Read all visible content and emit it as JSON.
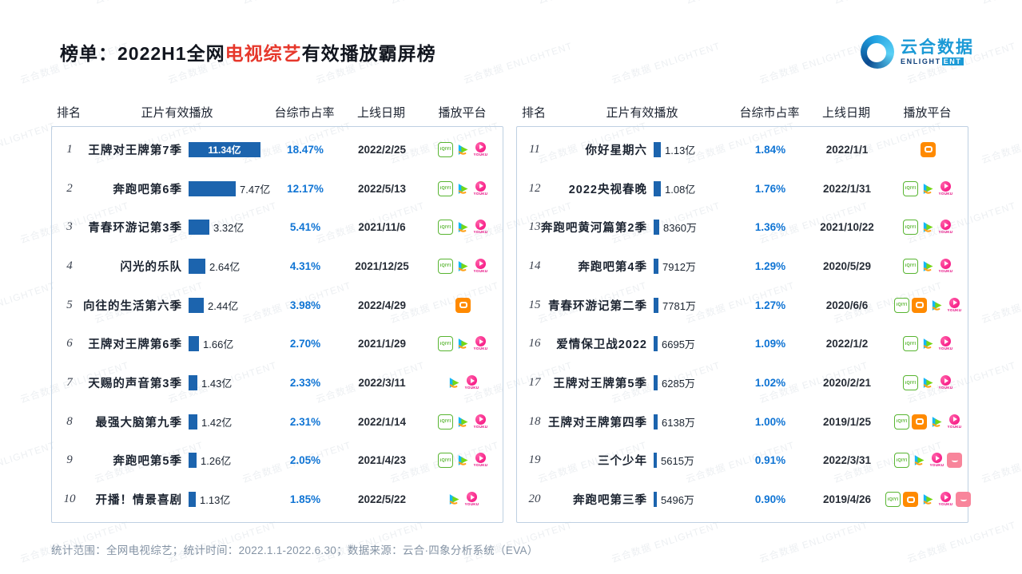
{
  "title": {
    "prefix": "榜单：",
    "part1": "2022H1全网",
    "highlight": "电视综艺",
    "suffix": "有效播放霸屏榜"
  },
  "logo": {
    "name_cn": "云合数据",
    "en_part1": "ENLIGHT",
    "en_part2": "ENT"
  },
  "watermark": {
    "text": "云合数据 ENLIGHTENT"
  },
  "columns": {
    "rank": "排名",
    "plays": "正片有效播放",
    "share": "台综市占率",
    "date": "上线日期",
    "platform": "播放平台"
  },
  "footer": {
    "text": "统计范围：全网电视综艺；统计时间：2022.1.1-2022.6.30；数据来源：云合·四象分析系统（EVA）"
  },
  "colors": {
    "bar": "#1c64ae",
    "share_text": "#0f74d4",
    "title_highlight": "#e6372b",
    "panel_border": "#bed0e2"
  },
  "chart_data": {
    "type": "bar",
    "title": "2022H1全网电视综艺有效播放霸屏榜",
    "unit": "亿",
    "max_value": 11.34,
    "tables": [
      {
        "rows": [
          {
            "rank": "1",
            "title": "王牌对王牌第7季",
            "value": 11.34,
            "label": "11.34亿",
            "share": "18.47%",
            "date": "2022/2/25",
            "platforms": [
              "iqiyi",
              "tencent",
              "youku"
            ]
          },
          {
            "rank": "2",
            "title": "奔跑吧第6季",
            "value": 7.47,
            "label": "7.47亿",
            "share": "12.17%",
            "date": "2022/5/13",
            "platforms": [
              "iqiyi",
              "tencent",
              "youku"
            ]
          },
          {
            "rank": "3",
            "title": "青春环游记第3季",
            "value": 3.32,
            "label": "3.32亿",
            "share": "5.41%",
            "date": "2021/11/6",
            "platforms": [
              "iqiyi",
              "tencent",
              "youku"
            ]
          },
          {
            "rank": "4",
            "title": "闪光的乐队",
            "value": 2.64,
            "label": "2.64亿",
            "share": "4.31%",
            "date": "2021/12/25",
            "platforms": [
              "iqiyi",
              "tencent",
              "youku"
            ]
          },
          {
            "rank": "5",
            "title": "向往的生活第六季",
            "value": 2.44,
            "label": "2.44亿",
            "share": "3.98%",
            "date": "2022/4/29",
            "platforms": [
              "mango"
            ]
          },
          {
            "rank": "6",
            "title": "王牌对王牌第6季",
            "value": 1.66,
            "label": "1.66亿",
            "share": "2.70%",
            "date": "2021/1/29",
            "platforms": [
              "iqiyi",
              "tencent",
              "youku"
            ]
          },
          {
            "rank": "7",
            "title": "天赐的声音第3季",
            "value": 1.43,
            "label": "1.43亿",
            "share": "2.33%",
            "date": "2022/3/11",
            "platforms": [
              "tencent",
              "youku"
            ]
          },
          {
            "rank": "8",
            "title": "最强大脑第九季",
            "value": 1.42,
            "label": "1.42亿",
            "share": "2.31%",
            "date": "2022/1/14",
            "platforms": [
              "iqiyi",
              "tencent",
              "youku"
            ]
          },
          {
            "rank": "9",
            "title": "奔跑吧第5季",
            "value": 1.26,
            "label": "1.26亿",
            "share": "2.05%",
            "date": "2021/4/23",
            "platforms": [
              "iqiyi",
              "tencent",
              "youku"
            ]
          },
          {
            "rank": "10",
            "title": "开播！情景喜剧",
            "value": 1.13,
            "label": "1.13亿",
            "share": "1.85%",
            "date": "2022/5/22",
            "platforms": [
              "tencent",
              "youku"
            ]
          }
        ]
      },
      {
        "rows": [
          {
            "rank": "11",
            "title": "你好星期六",
            "value": 1.13,
            "label": "1.13亿",
            "share": "1.84%",
            "date": "2022/1/1",
            "platforms": [
              "mango"
            ]
          },
          {
            "rank": "12",
            "title": "2022央视春晚",
            "value": 1.08,
            "label": "1.08亿",
            "share": "1.76%",
            "date": "2022/1/31",
            "platforms": [
              "iqiyi",
              "tencent",
              "youku"
            ]
          },
          {
            "rank": "13",
            "title": "奔跑吧黄河篇第2季",
            "value": 0.836,
            "label": "8360万",
            "share": "1.36%",
            "date": "2021/10/22",
            "platforms": [
              "iqiyi",
              "tencent",
              "youku"
            ]
          },
          {
            "rank": "14",
            "title": "奔跑吧第4季",
            "value": 0.7912,
            "label": "7912万",
            "share": "1.29%",
            "date": "2020/5/29",
            "platforms": [
              "iqiyi",
              "tencent",
              "youku"
            ]
          },
          {
            "rank": "15",
            "title": "青春环游记第二季",
            "value": 0.7781,
            "label": "7781万",
            "share": "1.27%",
            "date": "2020/6/6",
            "platforms": [
              "iqiyi",
              "mango",
              "tencent",
              "youku"
            ]
          },
          {
            "rank": "16",
            "title": "爱情保卫战2022",
            "value": 0.6695,
            "label": "6695万",
            "share": "1.09%",
            "date": "2022/1/2",
            "platforms": [
              "iqiyi",
              "tencent",
              "youku"
            ]
          },
          {
            "rank": "17",
            "title": "王牌对王牌第5季",
            "value": 0.6285,
            "label": "6285万",
            "share": "1.02%",
            "date": "2020/2/21",
            "platforms": [
              "iqiyi",
              "tencent",
              "youku"
            ]
          },
          {
            "rank": "18",
            "title": "王牌对王牌第四季",
            "value": 0.6138,
            "label": "6138万",
            "share": "1.00%",
            "date": "2019/1/25",
            "platforms": [
              "iqiyi",
              "mango",
              "tencent",
              "youku"
            ]
          },
          {
            "rank": "19",
            "title": "三个少年",
            "value": 0.5615,
            "label": "5615万",
            "share": "0.91%",
            "date": "2022/3/31",
            "platforms": [
              "iqiyi",
              "tencent",
              "youku",
              "migu"
            ]
          },
          {
            "rank": "20",
            "title": "奔跑吧第三季",
            "value": 0.5496,
            "label": "5496万",
            "share": "0.90%",
            "date": "2019/4/26",
            "platforms": [
              "iqiyi",
              "mango",
              "tencent",
              "youku",
              "migu"
            ]
          }
        ]
      }
    ]
  }
}
